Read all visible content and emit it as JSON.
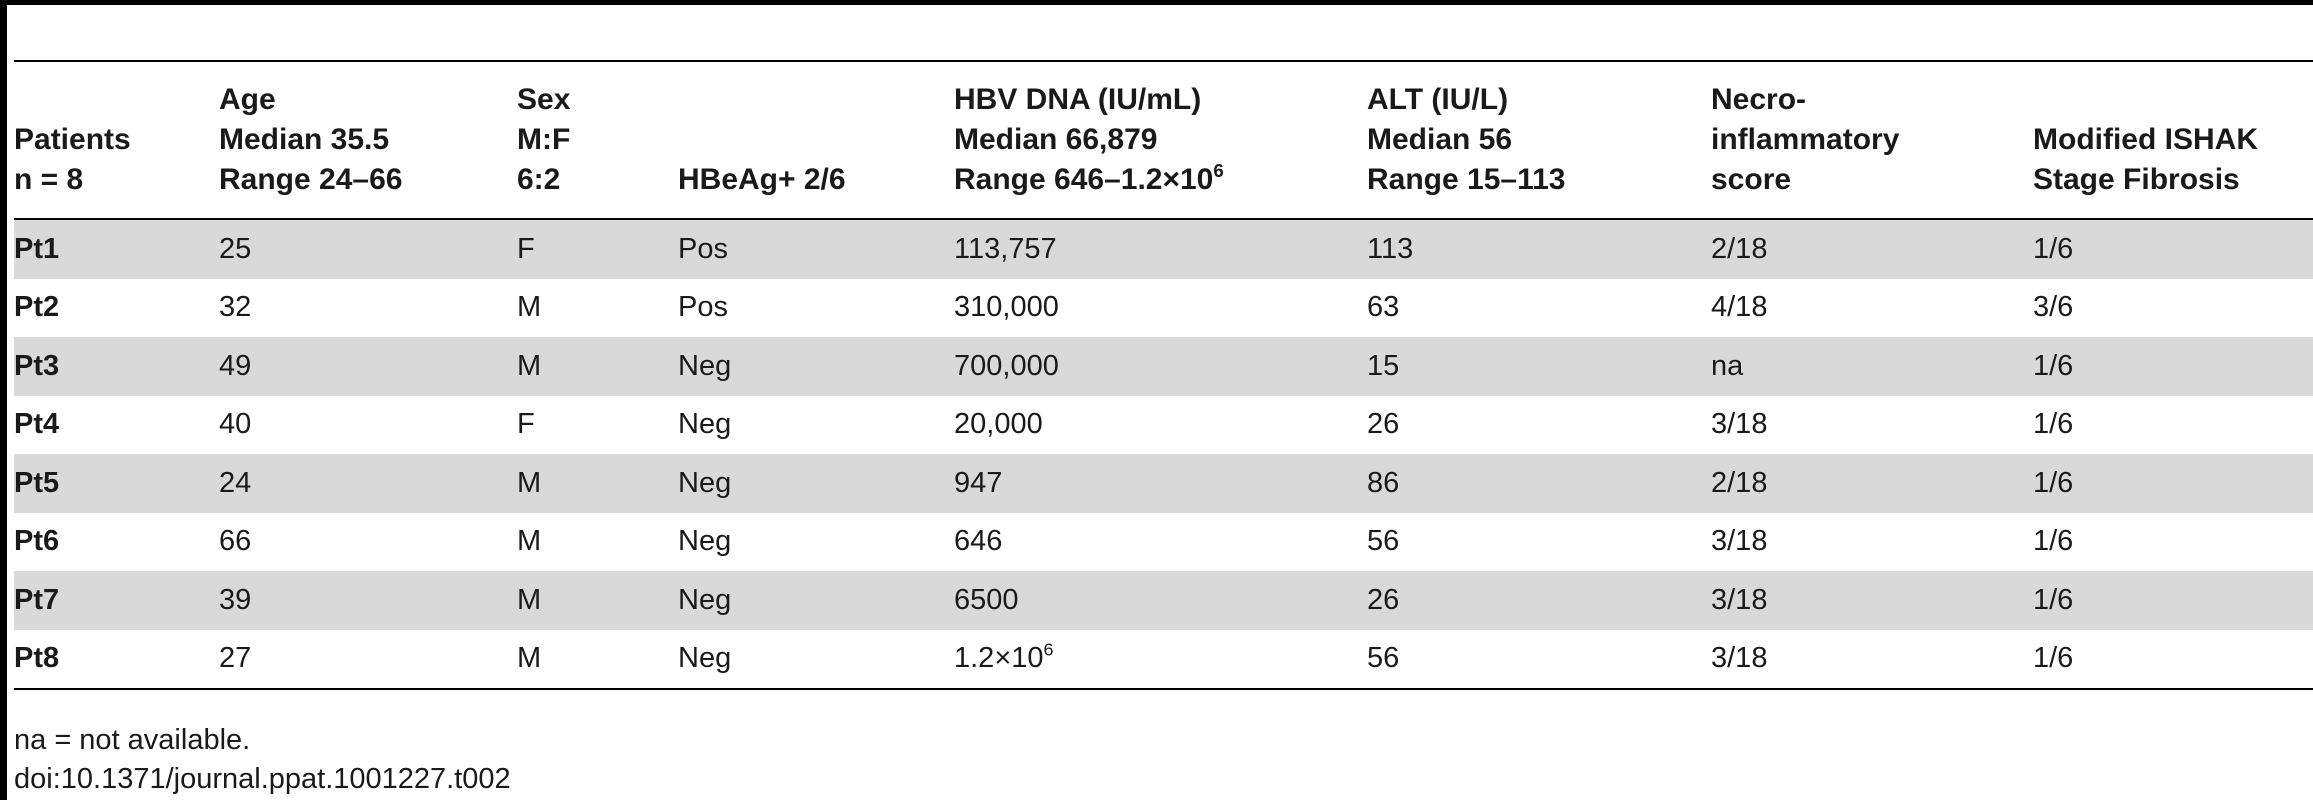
{
  "table": {
    "headers": [
      {
        "lines": [
          "Patients",
          "n = 8"
        ]
      },
      {
        "lines": [
          "Age",
          "Median 35.5",
          "Range 24–66"
        ]
      },
      {
        "lines": [
          "Sex",
          "M:F",
          "6:2"
        ]
      },
      {
        "lines": [
          "HBeAg+ 2/6"
        ]
      },
      {
        "lines": [
          "HBV DNA (IU/mL)",
          "Median 66,879",
          "Range 646–1.2×10"
        ],
        "sup_last": "6"
      },
      {
        "lines": [
          "ALT (IU/L)",
          "Median 56",
          "Range 15–113"
        ]
      },
      {
        "lines": [
          "Necro-",
          "inflammatory",
          "score"
        ]
      },
      {
        "lines": [
          "Modified ISHAK",
          "Stage Fibrosis"
        ]
      }
    ],
    "rows": [
      {
        "patient": "Pt1",
        "age": "25",
        "sex": "F",
        "hbeag": "Pos",
        "hbv_dna": "113,757",
        "hbv_dna_sup": "",
        "alt": "113",
        "necro": "2/18",
        "ishak": "1/6"
      },
      {
        "patient": "Pt2",
        "age": "32",
        "sex": "M",
        "hbeag": "Pos",
        "hbv_dna": "310,000",
        "hbv_dna_sup": "",
        "alt": "63",
        "necro": "4/18",
        "ishak": "3/6"
      },
      {
        "patient": "Pt3",
        "age": "49",
        "sex": "M",
        "hbeag": "Neg",
        "hbv_dna": "700,000",
        "hbv_dna_sup": "",
        "alt": "15",
        "necro": "na",
        "ishak": "1/6"
      },
      {
        "patient": "Pt4",
        "age": "40",
        "sex": "F",
        "hbeag": "Neg",
        "hbv_dna": "20,000",
        "hbv_dna_sup": "",
        "alt": "26",
        "necro": "3/18",
        "ishak": "1/6"
      },
      {
        "patient": "Pt5",
        "age": "24",
        "sex": "M",
        "hbeag": "Neg",
        "hbv_dna": "947",
        "hbv_dna_sup": "",
        "alt": "86",
        "necro": "2/18",
        "ishak": "1/6"
      },
      {
        "patient": "Pt6",
        "age": "66",
        "sex": "M",
        "hbeag": "Neg",
        "hbv_dna": "646",
        "hbv_dna_sup": "",
        "alt": "56",
        "necro": "3/18",
        "ishak": "1/6"
      },
      {
        "patient": "Pt7",
        "age": "39",
        "sex": "M",
        "hbeag": "Neg",
        "hbv_dna": "6500",
        "hbv_dna_sup": "",
        "alt": "26",
        "necro": "3/18",
        "ishak": "1/6"
      },
      {
        "patient": "Pt8",
        "age": "27",
        "sex": "M",
        "hbeag": "Neg",
        "hbv_dna": "1.2×10",
        "hbv_dna_sup": "6",
        "alt": "56",
        "necro": "3/18",
        "ishak": "1/6"
      }
    ]
  },
  "footnotes": {
    "abbreviation": "na = not available.",
    "doi": "doi:10.1371/journal.ppat.1001227.t002"
  },
  "colors": {
    "rule": "#000000",
    "shaded_row": "#d9d9d9",
    "text": "#1a1a1a"
  }
}
